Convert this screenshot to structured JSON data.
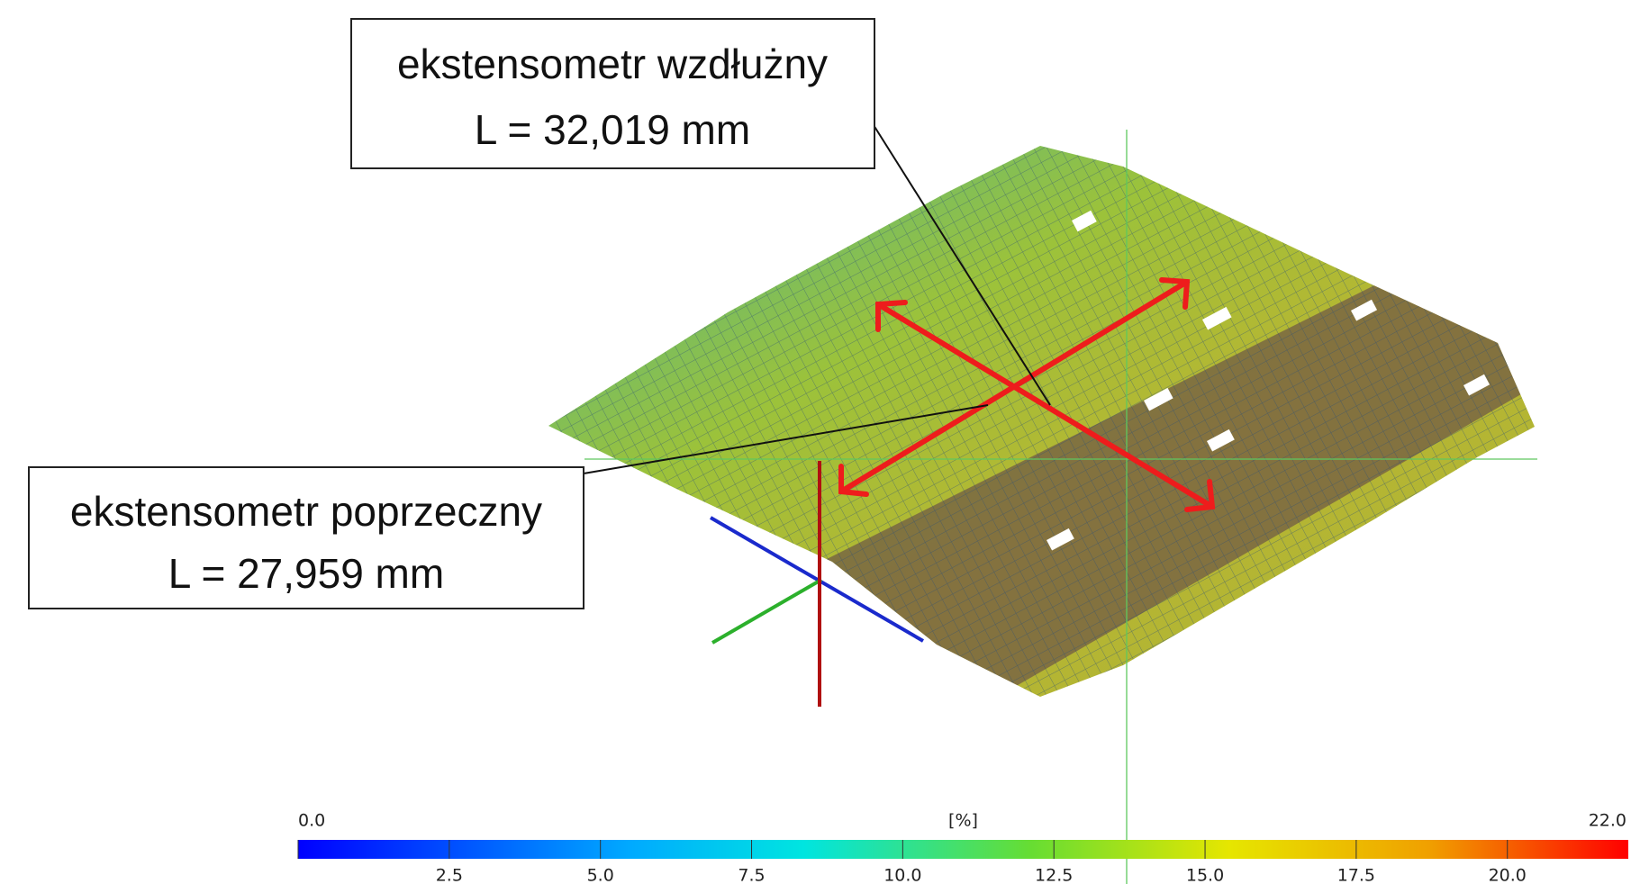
{
  "annotations": [
    {
      "lines": [
        "ekstensometr wzdłużny",
        "L = 32,019 mm"
      ]
    },
    {
      "lines": [
        "ekstensometr poprzeczny",
        "L = 27,959 mm"
      ]
    }
  ],
  "colorbar": {
    "unit": "[%]",
    "min": {
      "value": 0,
      "label": "0.0"
    },
    "max": {
      "value": 22,
      "label": "22.0"
    },
    "ticks": [
      {
        "value": 2.5,
        "label": "2.5"
      },
      {
        "value": 5,
        "label": "5.0"
      },
      {
        "value": 7.5,
        "label": "7.5"
      },
      {
        "value": 10,
        "label": "10.0"
      },
      {
        "value": 12.5,
        "label": "12.5"
      },
      {
        "value": 15,
        "label": "15.0"
      },
      {
        "value": 17.5,
        "label": "17.5"
      },
      {
        "value": 20,
        "label": "20.0"
      }
    ]
  }
}
